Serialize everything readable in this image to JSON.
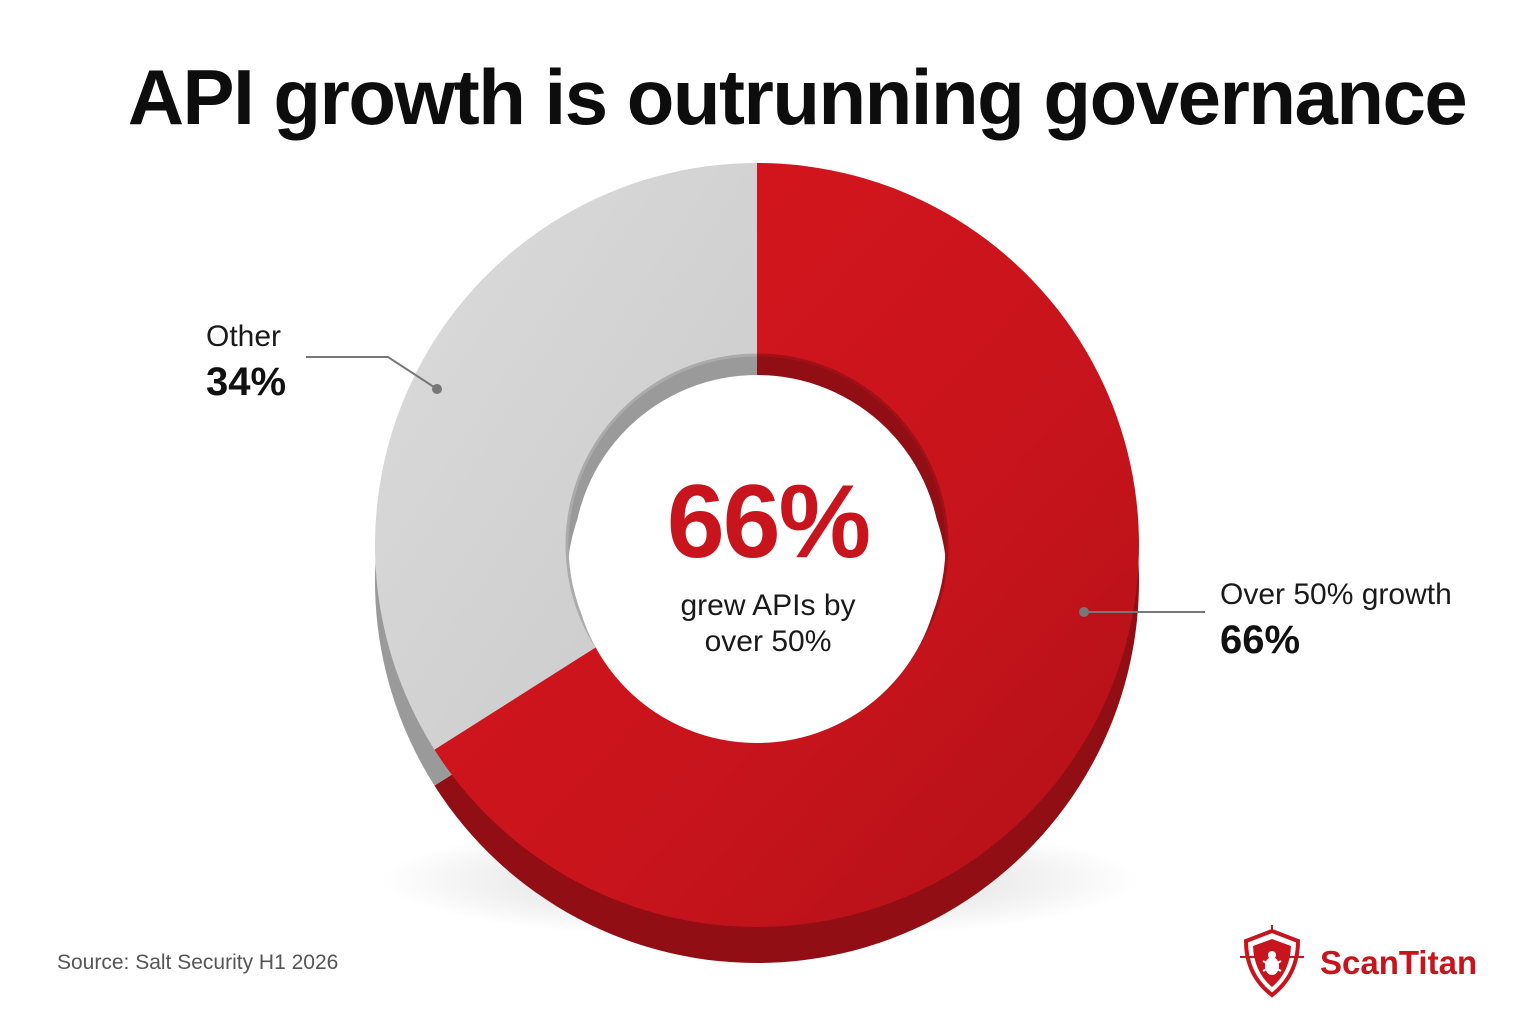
{
  "chart_data": {
    "type": "pie",
    "title": "API growth is outrunning governance",
    "slices": [
      {
        "name": "Over 50% growth",
        "value": 66,
        "label": "66%",
        "color": "#c8141c"
      },
      {
        "name": "Other",
        "value": 34,
        "label": "34%",
        "color": "#d6d6d6"
      }
    ],
    "center_value": "66%",
    "center_text": "grew APIs by over 50%",
    "donut": true,
    "legend": "callout labels"
  },
  "source": "Source: Salt Security H1 2026",
  "brand": {
    "name": "ScanTitan",
    "color": "#c8141c",
    "icon": "shield-bug-icon"
  }
}
